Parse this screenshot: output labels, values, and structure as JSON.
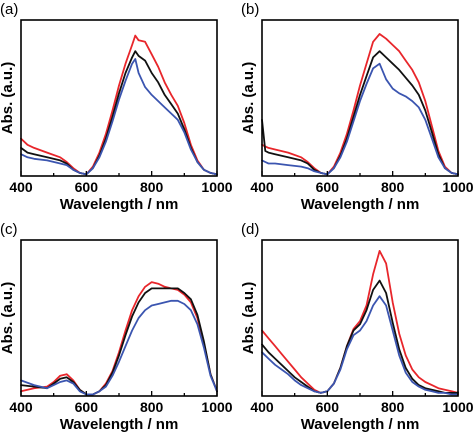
{
  "colors": {
    "red": "#e8262b",
    "black": "#111111",
    "blue": "#3b55b0"
  },
  "chart_data": [
    {
      "panel": "(a)",
      "type": "line",
      "xlabel": "Wavelength / nm",
      "ylabel": "Abs. (a.u.)",
      "xlim": [
        400,
        1000
      ],
      "ylim": [
        0,
        1
      ],
      "xticks": [
        "400",
        "600",
        "800",
        "1000"
      ],
      "series": [
        {
          "color": "red",
          "x": [
            400,
            420,
            440,
            480,
            520,
            540,
            560,
            580,
            600,
            620,
            640,
            660,
            680,
            700,
            720,
            740,
            750,
            760,
            780,
            800,
            820,
            840,
            860,
            880,
            900,
            920,
            940,
            960,
            980,
            1000
          ],
          "y": [
            0.24,
            0.2,
            0.18,
            0.15,
            0.12,
            0.09,
            0.05,
            0.02,
            0.01,
            0.06,
            0.15,
            0.27,
            0.42,
            0.58,
            0.72,
            0.84,
            0.9,
            0.87,
            0.86,
            0.78,
            0.7,
            0.6,
            0.52,
            0.45,
            0.34,
            0.2,
            0.1,
            0.04,
            0.02,
            0.01
          ]
        },
        {
          "color": "black",
          "x": [
            400,
            420,
            440,
            480,
            520,
            540,
            560,
            580,
            600,
            620,
            640,
            660,
            680,
            700,
            720,
            740,
            750,
            760,
            780,
            800,
            820,
            840,
            860,
            880,
            900,
            920,
            940,
            960,
            980,
            1000
          ],
          "y": [
            0.18,
            0.15,
            0.14,
            0.12,
            0.1,
            0.08,
            0.04,
            0.02,
            0.01,
            0.05,
            0.13,
            0.24,
            0.38,
            0.53,
            0.66,
            0.76,
            0.8,
            0.77,
            0.74,
            0.66,
            0.6,
            0.52,
            0.46,
            0.4,
            0.3,
            0.18,
            0.09,
            0.04,
            0.02,
            0.01
          ]
        },
        {
          "color": "blue",
          "x": [
            400,
            420,
            440,
            480,
            520,
            540,
            560,
            580,
            600,
            620,
            640,
            660,
            680,
            700,
            720,
            740,
            750,
            760,
            780,
            800,
            820,
            840,
            860,
            880,
            900,
            920,
            940,
            960,
            980,
            1000
          ],
          "y": [
            0.14,
            0.12,
            0.11,
            0.1,
            0.08,
            0.07,
            0.04,
            0.02,
            0.01,
            0.05,
            0.12,
            0.22,
            0.35,
            0.49,
            0.61,
            0.72,
            0.75,
            0.66,
            0.57,
            0.52,
            0.48,
            0.44,
            0.4,
            0.36,
            0.28,
            0.17,
            0.09,
            0.04,
            0.02,
            0.01
          ]
        }
      ]
    },
    {
      "panel": "(b)",
      "type": "line",
      "xlabel": "Wavelength / nm",
      "ylabel": "Abs. (a.u.)",
      "xlim": [
        400,
        1000
      ],
      "ylim": [
        0,
        1
      ],
      "xticks": [
        "400",
        "600",
        "800",
        "1000"
      ],
      "series": [
        {
          "color": "red",
          "x": [
            400,
            410,
            420,
            440,
            480,
            520,
            540,
            560,
            580,
            600,
            620,
            640,
            660,
            680,
            700,
            720,
            740,
            760,
            780,
            800,
            820,
            840,
            860,
            880,
            900,
            920,
            940,
            960,
            980,
            1000
          ],
          "y": [
            0.2,
            0.19,
            0.18,
            0.17,
            0.15,
            0.12,
            0.09,
            0.05,
            0.02,
            0.01,
            0.06,
            0.15,
            0.27,
            0.42,
            0.58,
            0.72,
            0.86,
            0.91,
            0.88,
            0.84,
            0.8,
            0.74,
            0.68,
            0.6,
            0.48,
            0.32,
            0.16,
            0.06,
            0.02,
            0.01
          ]
        },
        {
          "color": "black",
          "x": [
            400,
            410,
            420,
            440,
            480,
            520,
            540,
            560,
            580,
            600,
            620,
            640,
            660,
            680,
            700,
            720,
            740,
            760,
            780,
            800,
            820,
            840,
            860,
            880,
            900,
            920,
            940,
            960,
            980,
            1000
          ],
          "y": [
            0.36,
            0.16,
            0.15,
            0.14,
            0.12,
            0.1,
            0.08,
            0.04,
            0.02,
            0.01,
            0.05,
            0.13,
            0.24,
            0.38,
            0.52,
            0.64,
            0.76,
            0.8,
            0.76,
            0.72,
            0.68,
            0.63,
            0.58,
            0.52,
            0.42,
            0.28,
            0.14,
            0.05,
            0.02,
            0.01
          ]
        },
        {
          "color": "blue",
          "x": [
            400,
            410,
            420,
            440,
            480,
            520,
            540,
            560,
            580,
            600,
            620,
            640,
            660,
            680,
            700,
            720,
            740,
            760,
            780,
            800,
            820,
            840,
            860,
            880,
            900,
            920,
            940,
            960,
            980,
            1000
          ],
          "y": [
            0.1,
            0.09,
            0.08,
            0.08,
            0.07,
            0.06,
            0.05,
            0.03,
            0.02,
            0.01,
            0.05,
            0.12,
            0.22,
            0.35,
            0.48,
            0.59,
            0.69,
            0.72,
            0.62,
            0.56,
            0.53,
            0.51,
            0.48,
            0.44,
            0.36,
            0.24,
            0.12,
            0.05,
            0.02,
            0.01
          ]
        }
      ]
    },
    {
      "panel": "(c)",
      "type": "line",
      "xlabel": "Wavelength / nm",
      "ylabel": "Abs. (a.u.)",
      "xlim": [
        400,
        1000
      ],
      "ylim": [
        0,
        1
      ],
      "xticks": [
        "400",
        "600",
        "800",
        "1000"
      ],
      "series": [
        {
          "color": "red",
          "x": [
            400,
            440,
            480,
            500,
            520,
            540,
            560,
            580,
            600,
            620,
            640,
            660,
            680,
            700,
            720,
            740,
            760,
            780,
            800,
            820,
            840,
            860,
            880,
            900,
            920,
            940,
            960,
            980,
            1000
          ],
          "y": [
            0.03,
            0.05,
            0.06,
            0.09,
            0.13,
            0.14,
            0.1,
            0.04,
            0.01,
            0.01,
            0.03,
            0.08,
            0.16,
            0.28,
            0.42,
            0.55,
            0.64,
            0.7,
            0.73,
            0.72,
            0.7,
            0.69,
            0.68,
            0.65,
            0.6,
            0.5,
            0.34,
            0.14,
            0.03
          ]
        },
        {
          "color": "black",
          "x": [
            400,
            440,
            480,
            500,
            520,
            540,
            560,
            580,
            600,
            620,
            640,
            660,
            680,
            700,
            720,
            740,
            760,
            780,
            800,
            820,
            840,
            860,
            880,
            900,
            920,
            940,
            960,
            980,
            1000
          ],
          "y": [
            0.07,
            0.06,
            0.05,
            0.08,
            0.11,
            0.12,
            0.09,
            0.04,
            0.01,
            0.01,
            0.03,
            0.07,
            0.15,
            0.26,
            0.39,
            0.51,
            0.6,
            0.66,
            0.69,
            0.69,
            0.69,
            0.69,
            0.69,
            0.66,
            0.62,
            0.52,
            0.35,
            0.14,
            0.03
          ]
        },
        {
          "color": "blue",
          "x": [
            400,
            440,
            480,
            500,
            520,
            540,
            560,
            580,
            600,
            620,
            640,
            660,
            680,
            700,
            720,
            740,
            760,
            780,
            800,
            820,
            840,
            860,
            880,
            900,
            920,
            940,
            960,
            980,
            1000
          ],
          "y": [
            0.1,
            0.07,
            0.05,
            0.07,
            0.09,
            0.1,
            0.08,
            0.03,
            0.01,
            0.01,
            0.03,
            0.06,
            0.13,
            0.22,
            0.32,
            0.42,
            0.5,
            0.55,
            0.58,
            0.59,
            0.6,
            0.61,
            0.61,
            0.59,
            0.55,
            0.46,
            0.31,
            0.13,
            0.03
          ]
        }
      ]
    },
    {
      "panel": "(d)",
      "type": "line",
      "xlabel": "Wavelength / nm",
      "ylabel": "Abs. (a.u.)",
      "xlim": [
        400,
        1000
      ],
      "ylim": [
        0,
        1
      ],
      "xticks": [
        "400",
        "600",
        "800",
        "1000"
      ],
      "series": [
        {
          "color": "red",
          "x": [
            400,
            420,
            440,
            460,
            480,
            500,
            520,
            540,
            560,
            580,
            600,
            620,
            640,
            660,
            680,
            700,
            720,
            740,
            760,
            780,
            800,
            820,
            840,
            860,
            880,
            900,
            920,
            940,
            960,
            980,
            1000
          ],
          "y": [
            0.42,
            0.37,
            0.32,
            0.27,
            0.22,
            0.17,
            0.12,
            0.08,
            0.04,
            0.02,
            0.03,
            0.08,
            0.18,
            0.32,
            0.43,
            0.48,
            0.58,
            0.78,
            0.93,
            0.85,
            0.6,
            0.4,
            0.26,
            0.17,
            0.12,
            0.09,
            0.07,
            0.05,
            0.04,
            0.03,
            0.02
          ]
        },
        {
          "color": "black",
          "x": [
            400,
            420,
            440,
            460,
            480,
            500,
            520,
            540,
            560,
            580,
            600,
            620,
            640,
            660,
            680,
            700,
            720,
            740,
            760,
            780,
            800,
            820,
            840,
            860,
            880,
            900,
            920,
            940,
            960,
            980,
            1000
          ],
          "y": [
            0.33,
            0.28,
            0.24,
            0.2,
            0.16,
            0.12,
            0.09,
            0.06,
            0.03,
            0.02,
            0.03,
            0.08,
            0.18,
            0.32,
            0.42,
            0.46,
            0.55,
            0.68,
            0.74,
            0.66,
            0.47,
            0.3,
            0.18,
            0.11,
            0.07,
            0.05,
            0.04,
            0.03,
            0.02,
            0.02,
            0.02
          ]
        },
        {
          "color": "blue",
          "x": [
            400,
            420,
            440,
            460,
            480,
            500,
            520,
            540,
            560,
            580,
            600,
            620,
            640,
            660,
            680,
            700,
            720,
            740,
            760,
            780,
            800,
            820,
            840,
            860,
            880,
            900,
            920,
            940,
            960,
            980,
            1000
          ],
          "y": [
            0.28,
            0.24,
            0.2,
            0.17,
            0.14,
            0.1,
            0.07,
            0.05,
            0.03,
            0.02,
            0.03,
            0.08,
            0.17,
            0.3,
            0.39,
            0.42,
            0.48,
            0.58,
            0.64,
            0.58,
            0.42,
            0.26,
            0.15,
            0.09,
            0.06,
            0.04,
            0.03,
            0.02,
            0.02,
            0.01,
            0.01
          ]
        }
      ]
    }
  ]
}
